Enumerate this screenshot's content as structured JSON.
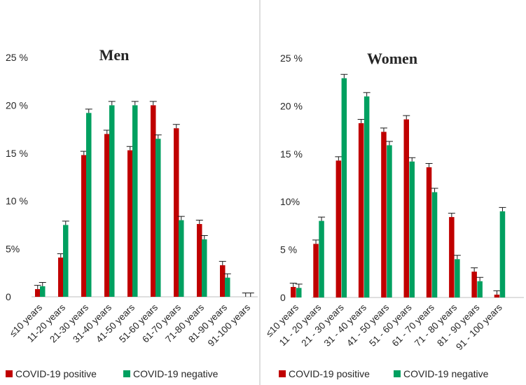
{
  "colors": {
    "positive": "#c00000",
    "negative": "#00a060"
  },
  "chart_data": [
    {
      "type": "bar",
      "title": "Men",
      "ylim": [
        0,
        25
      ],
      "yticks": [
        "0",
        "5%",
        "10 %",
        "15 %",
        "20 %",
        "25 %"
      ],
      "categories": [
        "≤10 years",
        "11-20 years",
        "21-30 years",
        "31-40 years",
        "41-50 years",
        "51-60 years",
        "61-70 years",
        "71-80 years",
        "81-90 years",
        "91-100 years"
      ],
      "series": [
        {
          "name": "COVID-19 positive",
          "values": [
            0.8,
            4.1,
            14.8,
            17.0,
            15.3,
            20.0,
            17.6,
            7.6,
            3.3,
            0
          ],
          "error": [
            0.4,
            0.4,
            0.4,
            0.4,
            0.4,
            0.4,
            0.4,
            0.4,
            0.4,
            0.4
          ]
        },
        {
          "name": "COVID-19 negative",
          "values": [
            1.1,
            7.5,
            19.2,
            20.0,
            20.0,
            16.5,
            8.0,
            6.0,
            2.0,
            0
          ],
          "error": [
            0.4,
            0.4,
            0.4,
            0.4,
            0.4,
            0.4,
            0.4,
            0.4,
            0.4,
            0.4
          ]
        }
      ],
      "legend": "bottom"
    },
    {
      "type": "bar",
      "title": "Women",
      "ylim": [
        0,
        25
      ],
      "yticks": [
        "0",
        "5 %",
        "10%",
        "15 %",
        "20 %",
        "25 %"
      ],
      "categories": [
        "≤10 years",
        "11 - 20 years",
        "21 - 30 years",
        "31 - 40 years",
        "41 - 50 years",
        "51 - 60 years",
        "61 - 70 years",
        "71 - 80 years",
        "81 - 90 years",
        "91 - 100 years"
      ],
      "series": [
        {
          "name": "COVID-19 positive",
          "values": [
            1.1,
            5.6,
            14.3,
            18.2,
            17.3,
            18.6,
            13.6,
            8.4,
            2.7,
            0.3
          ],
          "error": [
            0.4,
            0.4,
            0.4,
            0.4,
            0.4,
            0.4,
            0.4,
            0.4,
            0.4,
            0.4
          ]
        },
        {
          "name": "COVID-19 negative",
          "values": [
            1.0,
            8.0,
            22.9,
            21.0,
            15.9,
            14.2,
            11.0,
            4.0,
            1.7,
            9.0
          ],
          "error": [
            0.4,
            0.4,
            0.4,
            0.4,
            0.4,
            0.4,
            0.4,
            0.4,
            0.4,
            0.4
          ]
        }
      ],
      "legend": "bottom"
    }
  ]
}
